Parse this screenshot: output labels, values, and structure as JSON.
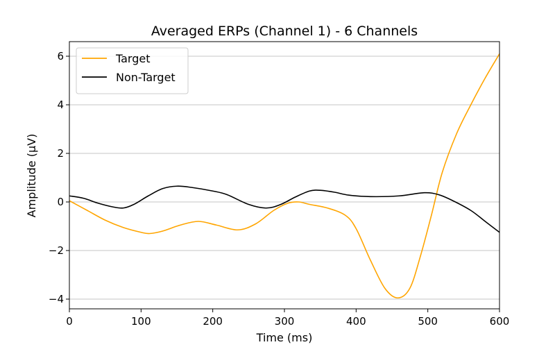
{
  "chart_data": {
    "type": "line",
    "title": "Averaged ERPs (Channel 1) - 6 Channels",
    "xlabel": "Time (ms)",
    "ylabel": "Amplitude (μV)",
    "xlim": [
      0,
      600
    ],
    "ylim": [
      -4.4,
      6.6
    ],
    "x_ticks": [
      0,
      100,
      200,
      300,
      400,
      500,
      600
    ],
    "y_ticks": [
      -4,
      -2,
      0,
      2,
      4,
      6
    ],
    "grid": "y-axis",
    "legend_position": "top-left",
    "series": [
      {
        "name": "Target",
        "color": "#FFA500",
        "x": [
          0,
          25,
          50,
          75,
          100,
          112,
          130,
          155,
          180,
          205,
          235,
          260,
          285,
          305,
          320,
          335,
          360,
          385,
          400,
          420,
          440,
          458,
          475,
          490,
          505,
          520,
          540,
          560,
          580,
          600
        ],
        "y": [
          0.05,
          -0.35,
          -0.75,
          -1.05,
          -1.25,
          -1.3,
          -1.2,
          -0.95,
          -0.8,
          -0.95,
          -1.15,
          -0.9,
          -0.35,
          -0.05,
          0.0,
          -0.1,
          -0.25,
          -0.55,
          -1.1,
          -2.4,
          -3.55,
          -3.95,
          -3.55,
          -2.2,
          -0.55,
          1.2,
          2.8,
          4.0,
          5.1,
          6.1
        ]
      },
      {
        "name": "Non-Target",
        "color": "#000000",
        "x": [
          0,
          20,
          40,
          60,
          75,
          90,
          110,
          130,
          150,
          170,
          200,
          220,
          250,
          275,
          295,
          315,
          335,
          350,
          370,
          390,
          420,
          460,
          495,
          515,
          535,
          560,
          580,
          600
        ],
        "y": [
          0.25,
          0.15,
          -0.05,
          -0.2,
          -0.25,
          -0.1,
          0.25,
          0.55,
          0.65,
          0.6,
          0.45,
          0.3,
          -0.1,
          -0.25,
          -0.1,
          0.2,
          0.45,
          0.48,
          0.4,
          0.28,
          0.22,
          0.25,
          0.38,
          0.3,
          0.05,
          -0.35,
          -0.8,
          -1.25
        ]
      }
    ]
  }
}
